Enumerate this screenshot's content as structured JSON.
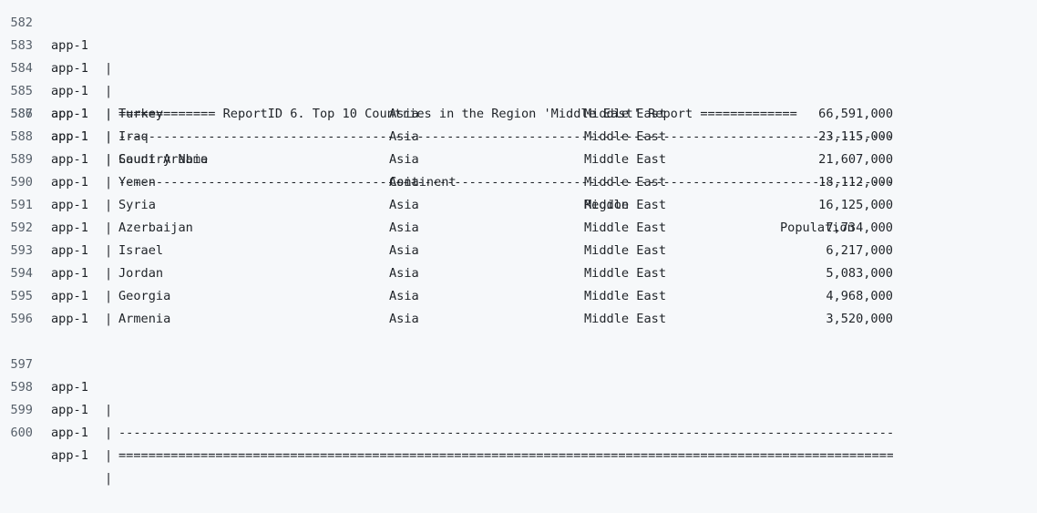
{
  "app_name": "app-1",
  "pipe": "|",
  "lines": {
    "l582": {
      "num": "582"
    },
    "l583": {
      "num": "583",
      "text": "============= ReportID 6. Top 10 Countries in the Region 'Middle East' Report ============="
    },
    "l584": {
      "num": "584",
      "text": "-------------------------------------------------------------------------------------------------------------"
    },
    "l585": {
      "num": "585"
    },
    "l586": {
      "num": "586",
      "text": "-------------------------------------------------------------------------------------------------------------"
    },
    "l597": {
      "num": "597",
      "text": "-------------------------------------------------------------------------------------------------------------"
    },
    "l598": {
      "num": "598",
      "text": "============================================================================================================="
    },
    "l599": {
      "num": "599"
    },
    "l600": {
      "num": "600"
    }
  },
  "table": {
    "headers": {
      "name": "Country Name",
      "continent": "Continent",
      "region": "Region",
      "population": "Population"
    },
    "rows": [
      {
        "num": "587",
        "name": "Turkey",
        "continent": "Asia",
        "region": "Middle East",
        "population": "66,591,000"
      },
      {
        "num": "588",
        "name": "Iraq",
        "continent": "Asia",
        "region": "Middle East",
        "population": "23,115,000"
      },
      {
        "num": "589",
        "name": "Saudi Arabia",
        "continent": "Asia",
        "region": "Middle East",
        "population": "21,607,000"
      },
      {
        "num": "590",
        "name": "Yemen",
        "continent": "Asia",
        "region": "Middle East",
        "population": "18,112,000"
      },
      {
        "num": "591",
        "name": "Syria",
        "continent": "Asia",
        "region": "Middle East",
        "population": "16,125,000"
      },
      {
        "num": "592",
        "name": "Azerbaijan",
        "continent": "Asia",
        "region": "Middle East",
        "population": "7,734,000"
      },
      {
        "num": "593",
        "name": "Israel",
        "continent": "Asia",
        "region": "Middle East",
        "population": "6,217,000"
      },
      {
        "num": "594",
        "name": "Jordan",
        "continent": "Asia",
        "region": "Middle East",
        "population": "5,083,000"
      },
      {
        "num": "595",
        "name": "Georgia",
        "continent": "Asia",
        "region": "Middle East",
        "population": "4,968,000"
      },
      {
        "num": "596",
        "name": "Armenia",
        "continent": "Asia",
        "region": "Middle East",
        "population": "3,520,000"
      }
    ]
  }
}
